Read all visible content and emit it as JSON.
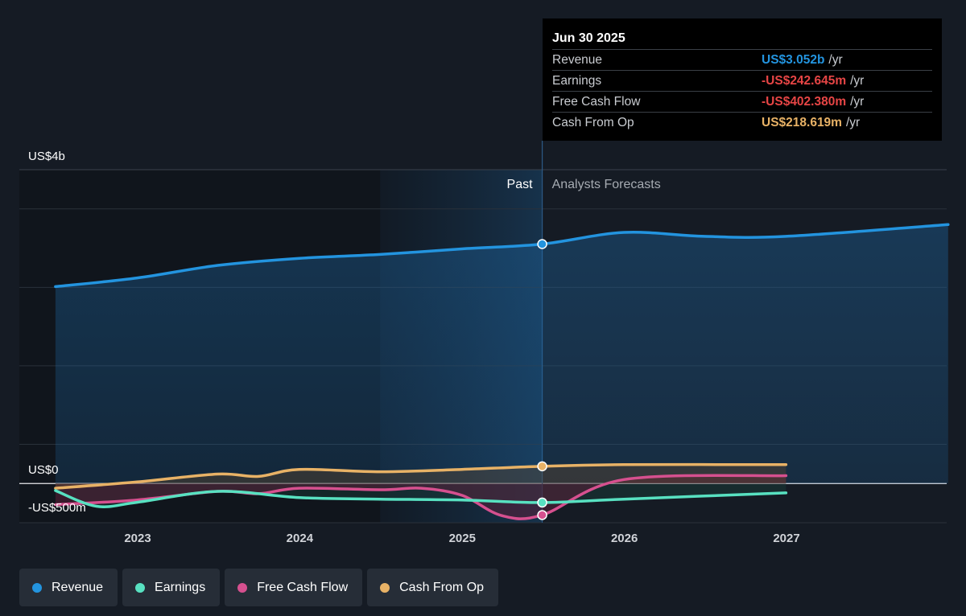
{
  "chart_data": {
    "type": "line",
    "y_axis_labels": [
      "US$4b",
      "US$0",
      "-US$500m"
    ],
    "ylim": [
      -500,
      4000
    ],
    "x_ticks": [
      "2023",
      "2024",
      "2025",
      "2026",
      "2027"
    ],
    "past_label": "Past",
    "forecast_label": "Analysts Forecasts",
    "divider_date": "2025-06-30",
    "series": [
      {
        "name": "Revenue",
        "color": "#2394df",
        "points": [
          [
            "2022-06-30",
            2510
          ],
          [
            "2022-12-31",
            2620
          ],
          [
            "2023-06-30",
            2780
          ],
          [
            "2023-12-31",
            2870
          ],
          [
            "2024-06-30",
            2920
          ],
          [
            "2024-12-31",
            2990
          ],
          [
            "2025-06-30",
            3052
          ],
          [
            "2025-12-31",
            3200
          ],
          [
            "2026-06-30",
            3150
          ],
          [
            "2026-12-31",
            3150
          ],
          [
            "2027-12-31",
            3300
          ]
        ]
      },
      {
        "name": "Earnings",
        "color": "#58e1c1",
        "points": [
          [
            "2022-06-30",
            -90
          ],
          [
            "2022-09-30",
            -290
          ],
          [
            "2022-12-31",
            -240
          ],
          [
            "2023-06-30",
            -100
          ],
          [
            "2023-12-31",
            -180
          ],
          [
            "2024-06-30",
            -200
          ],
          [
            "2024-12-31",
            -210
          ],
          [
            "2025-06-30",
            -243
          ],
          [
            "2025-12-31",
            -200
          ],
          [
            "2026-12-31",
            -120
          ]
        ]
      },
      {
        "name": "Free Cash Flow",
        "color": "#d6508f",
        "points": [
          [
            "2022-06-30",
            -270
          ],
          [
            "2022-12-31",
            -210
          ],
          [
            "2023-06-30",
            -100
          ],
          [
            "2023-09-30",
            -130
          ],
          [
            "2023-12-31",
            -60
          ],
          [
            "2024-06-30",
            -80
          ],
          [
            "2024-09-30",
            -60
          ],
          [
            "2024-12-31",
            -150
          ],
          [
            "2025-03-31",
            -410
          ],
          [
            "2025-06-30",
            -402
          ],
          [
            "2025-12-31",
            50
          ],
          [
            "2026-12-31",
            100
          ]
        ]
      },
      {
        "name": "Cash From Op",
        "color": "#e8b266",
        "points": [
          [
            "2022-06-30",
            -60
          ],
          [
            "2022-12-31",
            20
          ],
          [
            "2023-06-30",
            120
          ],
          [
            "2023-09-30",
            90
          ],
          [
            "2023-12-31",
            180
          ],
          [
            "2024-06-30",
            150
          ],
          [
            "2024-12-31",
            180
          ],
          [
            "2025-06-30",
            219
          ],
          [
            "2025-12-31",
            240
          ],
          [
            "2026-12-31",
            240
          ]
        ]
      }
    ]
  },
  "tooltip": {
    "date": "Jun 30 2025",
    "rows": [
      {
        "label": "Revenue",
        "value": "US$3.052b",
        "unit": "/yr",
        "color": "#2394df"
      },
      {
        "label": "Earnings",
        "value": "-US$242.645m",
        "unit": "/yr",
        "color": "#e64545"
      },
      {
        "label": "Free Cash Flow",
        "value": "-US$402.380m",
        "unit": "/yr",
        "color": "#e64545"
      },
      {
        "label": "Cash From Op",
        "value": "US$218.619m",
        "unit": "/yr",
        "color": "#e8b266"
      }
    ]
  },
  "legend": [
    {
      "label": "Revenue",
      "color": "#2394df"
    },
    {
      "label": "Earnings",
      "color": "#58e1c1"
    },
    {
      "label": "Free Cash Flow",
      "color": "#d6508f"
    },
    {
      "label": "Cash From Op",
      "color": "#e8b266"
    }
  ]
}
